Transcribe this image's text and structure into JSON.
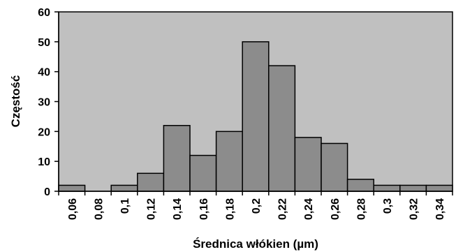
{
  "chart_data": {
    "type": "bar",
    "categories": [
      "0,06",
      "0,08",
      "0,1",
      "0,12",
      "0,14",
      "0,16",
      "0,18",
      "0,2",
      "0,22",
      "0,24",
      "0,26",
      "0,28",
      "0,3",
      "0,32",
      "0,34"
    ],
    "values": [
      2,
      0,
      2,
      6,
      22,
      12,
      20,
      50,
      42,
      18,
      16,
      4,
      2,
      2,
      2
    ],
    "ylabel": "Częstość",
    "xlabel": "Średnica włókien (µm)",
    "ylim": [
      0,
      60
    ],
    "yticks": [
      0,
      10,
      20,
      30,
      40,
      50,
      60
    ],
    "grid": false,
    "legend": "none",
    "colors": {
      "plot_background": "#c0c0c0",
      "bar_fill": "#8c8c8c",
      "bar_stroke": "#000000"
    }
  }
}
